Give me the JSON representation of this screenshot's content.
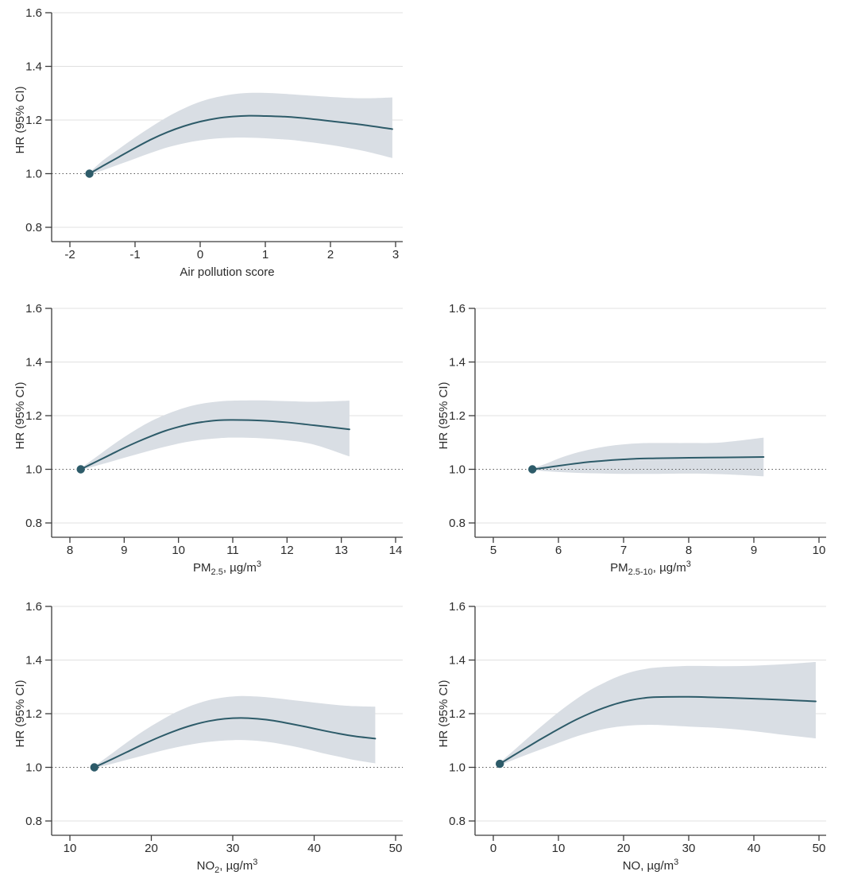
{
  "figure": {
    "background": "#ffffff",
    "y_axis_label": "HR (95% CI)",
    "colors": {
      "curve_line": "#2d5b69",
      "reference_point": "#2d5b69",
      "ci_band": "#d9dee4",
      "gridline": "#e0e0e0",
      "axis": "#3c3c3c",
      "text": "#2b2b2b",
      "reference_dotted_line": "#5a5a5a"
    }
  },
  "chart_data": [
    {
      "type": "line",
      "id": "air-pollution-score",
      "title": "",
      "ylabel": "HR (95% CI)",
      "xlabel_plain": "Air pollution score",
      "xlabel_segments": [
        {
          "text": "Air pollution score",
          "style": "normal"
        }
      ],
      "ylim": [
        0.8,
        1.6
      ],
      "y_ticks": [
        {
          "value": 1.6,
          "label": "1.6"
        },
        {
          "value": 1.4,
          "label": "1.4"
        },
        {
          "value": 1.2,
          "label": "1.2"
        },
        {
          "value": 1.0,
          "label": "1.0"
        },
        {
          "value": 0.8,
          "label": "0.8"
        }
      ],
      "x_ticks": [
        {
          "value": -2,
          "label": "-2"
        },
        {
          "value": -1,
          "label": "-1"
        },
        {
          "value": 0,
          "label": "0"
        },
        {
          "value": 1,
          "label": "1"
        },
        {
          "value": 2,
          "label": "2"
        },
        {
          "value": 3,
          "label": "3"
        }
      ],
      "xlim": [
        -2,
        3
      ],
      "reference_hr": 1.0,
      "reference_point": {
        "x": -1.7,
        "y": 1.0
      },
      "x": [
        -1.7,
        -1.5,
        -1.25,
        -1,
        -0.75,
        -0.5,
        -0.25,
        0,
        0.25,
        0.5,
        0.75,
        1,
        1.25,
        1.5,
        2,
        2.5,
        2.95
      ],
      "hr": [
        1.0,
        1.028,
        1.062,
        1.096,
        1.128,
        1.155,
        1.177,
        1.194,
        1.206,
        1.213,
        1.216,
        1.215,
        1.213,
        1.209,
        1.196,
        1.182,
        1.166
      ],
      "ci_upper": [
        1.004,
        1.048,
        1.092,
        1.135,
        1.175,
        1.212,
        1.243,
        1.268,
        1.285,
        1.296,
        1.301,
        1.301,
        1.298,
        1.294,
        1.286,
        1.281,
        1.284
      ],
      "ci_lower": [
        0.997,
        1.012,
        1.034,
        1.056,
        1.078,
        1.098,
        1.113,
        1.124,
        1.131,
        1.134,
        1.134,
        1.132,
        1.128,
        1.123,
        1.107,
        1.085,
        1.058
      ]
    },
    {
      "type": "line",
      "id": "pm25",
      "title": "",
      "ylabel": "HR (95% CI)",
      "xlabel_plain": "PM2.5, µg/m3",
      "xlabel_segments": [
        {
          "text": "PM",
          "style": "normal"
        },
        {
          "text": "2.5",
          "style": "sub"
        },
        {
          "text": ", µg/m",
          "style": "normal"
        },
        {
          "text": "3",
          "style": "sup"
        }
      ],
      "ylim": [
        0.8,
        1.6
      ],
      "y_ticks": [
        {
          "value": 1.6,
          "label": "1.6"
        },
        {
          "value": 1.4,
          "label": "1.4"
        },
        {
          "value": 1.2,
          "label": "1.2"
        },
        {
          "value": 1.0,
          "label": "1.0"
        },
        {
          "value": 0.8,
          "label": "0.8"
        }
      ],
      "x_ticks": [
        {
          "value": 8,
          "label": "8"
        },
        {
          "value": 9,
          "label": "9"
        },
        {
          "value": 10,
          "label": "10"
        },
        {
          "value": 11,
          "label": "11"
        },
        {
          "value": 12,
          "label": "12"
        },
        {
          "value": 13,
          "label": "13"
        },
        {
          "value": 14,
          "label": "14"
        }
      ],
      "xlim": [
        8,
        14
      ],
      "reference_hr": 1.0,
      "reference_point": {
        "x": 8.2,
        "y": 1.0
      },
      "x": [
        8.2,
        8.5,
        8.75,
        9,
        9.25,
        9.5,
        9.75,
        10,
        10.25,
        10.5,
        10.75,
        11,
        11.5,
        12,
        12.5,
        13.15
      ],
      "hr": [
        1.0,
        1.03,
        1.055,
        1.08,
        1.103,
        1.124,
        1.143,
        1.158,
        1.17,
        1.178,
        1.183,
        1.184,
        1.182,
        1.175,
        1.164,
        1.149
      ],
      "ci_upper": [
        1.004,
        1.048,
        1.085,
        1.12,
        1.152,
        1.18,
        1.203,
        1.222,
        1.237,
        1.247,
        1.253,
        1.256,
        1.257,
        1.254,
        1.252,
        1.256
      ],
      "ci_lower": [
        0.997,
        1.014,
        1.028,
        1.043,
        1.057,
        1.071,
        1.084,
        1.096,
        1.105,
        1.112,
        1.116,
        1.118,
        1.116,
        1.108,
        1.092,
        1.048
      ]
    },
    {
      "type": "line",
      "id": "pm25-10",
      "title": "",
      "ylabel": "HR (95% CI)",
      "xlabel_plain": "PM2.5-10, µg/m3",
      "xlabel_segments": [
        {
          "text": "PM",
          "style": "normal"
        },
        {
          "text": "2.5-10",
          "style": "sub"
        },
        {
          "text": ", µg/m",
          "style": "normal"
        },
        {
          "text": "3",
          "style": "sup"
        }
      ],
      "ylim": [
        0.8,
        1.6
      ],
      "y_ticks": [
        {
          "value": 1.6,
          "label": "1.6"
        },
        {
          "value": 1.4,
          "label": "1.4"
        },
        {
          "value": 1.2,
          "label": "1.2"
        },
        {
          "value": 1.0,
          "label": "1.0"
        },
        {
          "value": 0.8,
          "label": "0.8"
        }
      ],
      "x_ticks": [
        {
          "value": 5,
          "label": "5"
        },
        {
          "value": 6,
          "label": "6"
        },
        {
          "value": 7,
          "label": "7"
        },
        {
          "value": 8,
          "label": "8"
        },
        {
          "value": 9,
          "label": "9"
        },
        {
          "value": 10,
          "label": "10"
        }
      ],
      "xlim": [
        5,
        10
      ],
      "reference_hr": 1.0,
      "reference_point": {
        "x": 5.6,
        "y": 1.0
      },
      "x": [
        5.6,
        5.8,
        6,
        6.25,
        6.5,
        6.75,
        7,
        7.25,
        7.5,
        8,
        8.5,
        9.15
      ],
      "hr": [
        1.0,
        1.006,
        1.013,
        1.021,
        1.028,
        1.033,
        1.037,
        1.04,
        1.041,
        1.043,
        1.044,
        1.046
      ],
      "ci_upper": [
        1.003,
        1.02,
        1.04,
        1.06,
        1.075,
        1.086,
        1.093,
        1.097,
        1.098,
        1.098,
        1.1,
        1.118
      ],
      "ci_lower": [
        0.997,
        0.993,
        0.99,
        0.987,
        0.985,
        0.984,
        0.983,
        0.983,
        0.983,
        0.984,
        0.982,
        0.974
      ]
    },
    {
      "type": "line",
      "id": "no2",
      "title": "",
      "ylabel": "HR (95% CI)",
      "xlabel_plain": "NO2, µg/m3",
      "xlabel_segments": [
        {
          "text": "NO",
          "style": "normal"
        },
        {
          "text": "2",
          "style": "sub"
        },
        {
          "text": ", µg/m",
          "style": "normal"
        },
        {
          "text": "3",
          "style": "sup"
        }
      ],
      "ylim": [
        0.8,
        1.6
      ],
      "y_ticks": [
        {
          "value": 1.6,
          "label": "1.6"
        },
        {
          "value": 1.4,
          "label": "1.4"
        },
        {
          "value": 1.2,
          "label": "1.2"
        },
        {
          "value": 1.0,
          "label": "1.0"
        },
        {
          "value": 0.8,
          "label": "0.8"
        }
      ],
      "x_ticks": [
        {
          "value": 10,
          "label": "10"
        },
        {
          "value": 20,
          "label": "20"
        },
        {
          "value": 30,
          "label": "30"
        },
        {
          "value": 40,
          "label": "40"
        },
        {
          "value": 50,
          "label": "50"
        }
      ],
      "xlim": [
        10,
        50
      ],
      "reference_hr": 1.0,
      "reference_point": {
        "x": 13,
        "y": 1.0
      },
      "x": [
        13,
        15,
        17,
        19,
        21,
        23,
        25,
        27,
        29,
        31,
        33,
        35,
        37,
        39,
        41,
        43,
        45,
        47.5
      ],
      "hr": [
        1.0,
        1.028,
        1.057,
        1.086,
        1.113,
        1.137,
        1.157,
        1.172,
        1.181,
        1.184,
        1.181,
        1.174,
        1.163,
        1.151,
        1.138,
        1.126,
        1.116,
        1.107
      ],
      "ci_upper": [
        1.004,
        1.048,
        1.093,
        1.135,
        1.172,
        1.205,
        1.231,
        1.25,
        1.261,
        1.266,
        1.264,
        1.259,
        1.252,
        1.245,
        1.238,
        1.232,
        1.228,
        1.226
      ],
      "ci_lower": [
        0.997,
        1.012,
        1.028,
        1.044,
        1.06,
        1.074,
        1.086,
        1.095,
        1.1,
        1.102,
        1.099,
        1.092,
        1.081,
        1.068,
        1.053,
        1.04,
        1.027,
        1.015
      ]
    },
    {
      "type": "line",
      "id": "no",
      "title": "",
      "ylabel": "HR (95% CI)",
      "xlabel_plain": "NO, µg/m3",
      "xlabel_segments": [
        {
          "text": "NO, µg/m",
          "style": "normal"
        },
        {
          "text": "3",
          "style": "sup"
        }
      ],
      "ylim": [
        0.8,
        1.6
      ],
      "y_ticks": [
        {
          "value": 1.6,
          "label": "1.6"
        },
        {
          "value": 1.4,
          "label": "1.4"
        },
        {
          "value": 1.2,
          "label": "1.2"
        },
        {
          "value": 1.0,
          "label": "1.0"
        },
        {
          "value": 0.8,
          "label": "0.8"
        }
      ],
      "x_ticks": [
        {
          "value": 0,
          "label": "0"
        },
        {
          "value": 10,
          "label": "10"
        },
        {
          "value": 20,
          "label": "20"
        },
        {
          "value": 30,
          "label": "30"
        },
        {
          "value": 40,
          "label": "40"
        },
        {
          "value": 50,
          "label": "50"
        }
      ],
      "xlim": [
        0,
        50
      ],
      "reference_hr": 1.0,
      "reference_point": {
        "x": 1,
        "y": 1.013
      },
      "x": [
        1,
        3,
        5,
        7,
        9,
        11,
        13,
        15,
        17,
        19,
        21,
        23,
        25,
        30,
        35,
        40,
        45,
        49.5
      ],
      "hr": [
        1.013,
        1.043,
        1.072,
        1.101,
        1.129,
        1.156,
        1.181,
        1.203,
        1.222,
        1.238,
        1.25,
        1.258,
        1.262,
        1.263,
        1.26,
        1.256,
        1.251,
        1.246
      ],
      "ci_upper": [
        1.018,
        1.06,
        1.103,
        1.145,
        1.186,
        1.224,
        1.259,
        1.29,
        1.315,
        1.337,
        1.354,
        1.365,
        1.372,
        1.378,
        1.377,
        1.379,
        1.385,
        1.393
      ],
      "ci_lower": [
        1.008,
        1.027,
        1.046,
        1.064,
        1.082,
        1.1,
        1.117,
        1.131,
        1.143,
        1.151,
        1.156,
        1.158,
        1.158,
        1.152,
        1.146,
        1.135,
        1.12,
        1.108
      ]
    }
  ]
}
